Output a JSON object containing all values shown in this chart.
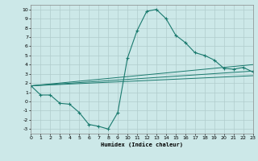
{
  "xlabel": "Humidex (Indice chaleur)",
  "xlim": [
    0,
    23
  ],
  "ylim": [
    -3.5,
    10.5
  ],
  "yticks": [
    -3,
    -2,
    -1,
    0,
    1,
    2,
    3,
    4,
    5,
    6,
    7,
    8,
    9,
    10
  ],
  "xticks": [
    0,
    1,
    2,
    3,
    4,
    5,
    6,
    7,
    8,
    9,
    10,
    11,
    12,
    13,
    14,
    15,
    16,
    17,
    18,
    19,
    20,
    21,
    22,
    23
  ],
  "background_color": "#cce8e8",
  "grid_color": "#b0cccc",
  "line_color": "#1a7a6e",
  "curve1_x": [
    0,
    1,
    2,
    3,
    4,
    5,
    6,
    7,
    8,
    9,
    10,
    11,
    12,
    13,
    14,
    15,
    16,
    17,
    18,
    19,
    20,
    21,
    22,
    23
  ],
  "curve1_y": [
    1.7,
    0.7,
    0.7,
    -0.2,
    -0.3,
    -1.2,
    -2.5,
    -2.7,
    -3.0,
    -1.2,
    4.7,
    7.7,
    9.8,
    10.0,
    9.0,
    7.2,
    6.4,
    5.3,
    5.0,
    4.5,
    3.6,
    3.5,
    3.7,
    3.2
  ],
  "curve2_x": [
    0,
    23
  ],
  "curve2_y": [
    1.7,
    4.0
  ],
  "curve3_x": [
    0,
    23
  ],
  "curve3_y": [
    1.7,
    3.3
  ],
  "curve4_x": [
    0,
    23
  ],
  "curve4_y": [
    1.7,
    2.8
  ]
}
